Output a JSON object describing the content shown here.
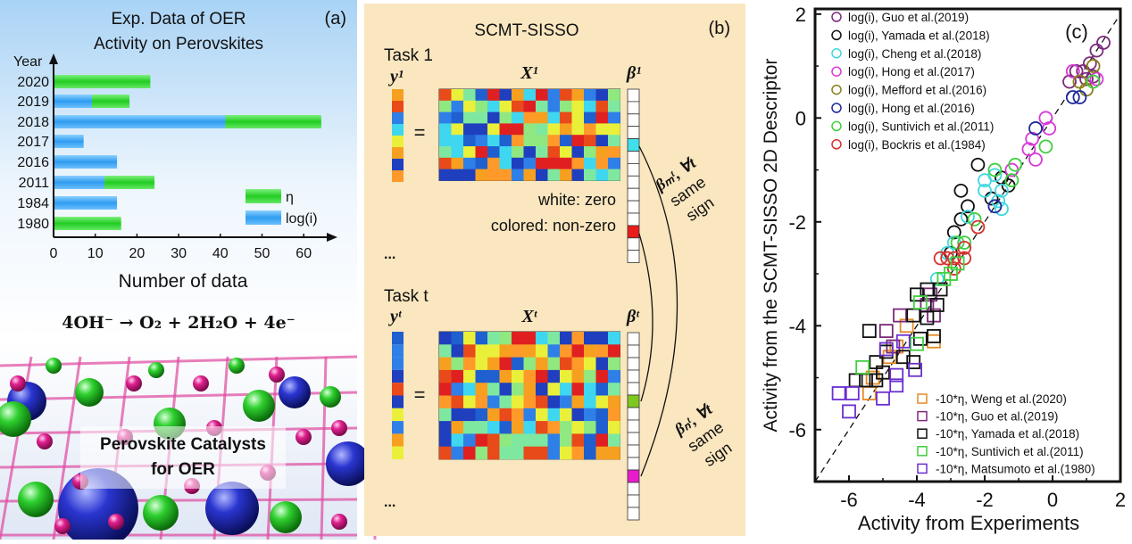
{
  "panel_a": {
    "label": "(a)",
    "equation": "4OH⁻ →  O₂ + 2H₂O + 4e⁻",
    "image_caption": [
      "Perovskite Catalysts",
      "for OER"
    ]
  },
  "panel_b": {
    "label": "(b)",
    "title": "SCMT-SISSO",
    "task1": {
      "label": "Task 1",
      "y": "y¹",
      "X": "X¹",
      "beta": "β¹"
    },
    "taskt": {
      "label": "Task t",
      "y": "yᵗ",
      "X": "Xᵗ",
      "beta": "βᵗ"
    },
    "equals": "=",
    "ellipsis": "...",
    "note_white": "white: zero",
    "note_colored": "colored: non-zero",
    "constraint_m": [
      "βₘᵗ, ∀t",
      "same",
      "sign"
    ],
    "constraint_n": [
      "βₙᵗ, ∀t",
      "same",
      "sign"
    ]
  },
  "chart_data": [
    {
      "type": "bar",
      "orientation": "horizontal",
      "stacked": true,
      "title_lines": [
        "Exp. Data of OER",
        "Activity on Perovskites"
      ],
      "ylabel": "Year",
      "xlabel": "Number of data",
      "categories": [
        "2020",
        "2019",
        "2018",
        "2017",
        "2016",
        "2011",
        "1984",
        "1980"
      ],
      "series": [
        {
          "name": "log(i)",
          "color": "#3aa2f2",
          "values": [
            0,
            9,
            41,
            7,
            15,
            12,
            15,
            0
          ]
        },
        {
          "name": "η",
          "color": "#2fd52f",
          "values": [
            23,
            9,
            23,
            0,
            0,
            12,
            0,
            16
          ]
        }
      ],
      "xlim": [
        0,
        65
      ],
      "xticks": [
        0,
        10,
        20,
        30,
        40,
        50,
        60
      ],
      "legend_position": "bottom-right",
      "grid": false
    },
    {
      "type": "scatter",
      "label": "(c)",
      "xlabel": "Activity from Experiments",
      "ylabel": "Activity from the SCMT-SISSO 2D Descriptor",
      "xlim": [
        -7,
        2
      ],
      "ylim": [
        -7,
        2.1
      ],
      "xticks": [
        -6,
        -4,
        -2,
        0,
        2
      ],
      "yticks": [
        -6,
        -4,
        -2,
        0,
        2
      ],
      "reference_line": "y = x (dashed)",
      "grid": false,
      "legend_position": [
        "top-left",
        "bottom-right"
      ],
      "series": [
        {
          "name": "log(i), Guo et al.(2019)",
          "marker": "circle",
          "color": "#7b2a7b",
          "points": [
            [
              0.5,
              0.7
            ],
            [
              0.7,
              0.9
            ],
            [
              0.9,
              0.9
            ],
            [
              1.1,
              1.05
            ],
            [
              1.3,
              1.3
            ],
            [
              1.5,
              1.45
            ],
            [
              1.2,
              0.8
            ],
            [
              1.0,
              0.75
            ]
          ]
        },
        {
          "name": "log(i), Yamada et al.(2018)",
          "marker": "circle",
          "color": "#111111",
          "points": [
            [
              -2.2,
              -0.9
            ],
            [
              -1.5,
              -1.15
            ],
            [
              -2.7,
              -1.4
            ],
            [
              -1.8,
              -1.55
            ],
            [
              -2.5,
              -1.7
            ],
            [
              -2.7,
              -1.95
            ],
            [
              -2.9,
              -2.2
            ],
            [
              -1.3,
              -1.3
            ],
            [
              -3.0,
              -2.6
            ]
          ]
        },
        {
          "name": "log(i), Cheng et al.(2018)",
          "marker": "circle",
          "color": "#3fd8e0",
          "points": [
            [
              -1.7,
              -1.1
            ],
            [
              -2.0,
              -1.4
            ],
            [
              -1.5,
              -1.4
            ],
            [
              -1.6,
              -1.6
            ],
            [
              -1.5,
              -1.75
            ],
            [
              -2.5,
              -1.9
            ],
            [
              -3.1,
              -2.6
            ],
            [
              -2.9,
              -2.4
            ],
            [
              -2.0,
              -1.2
            ],
            [
              -3.4,
              -3.1
            ]
          ]
        },
        {
          "name": "log(i), Hong et al.(2017)",
          "marker": "circle",
          "color": "#d83ad8",
          "points": [
            [
              -0.2,
              0.0
            ],
            [
              -0.1,
              -0.2
            ],
            [
              -0.6,
              -0.4
            ],
            [
              -0.7,
              -0.6
            ],
            [
              -0.5,
              -0.8
            ],
            [
              -1.2,
              -1.0
            ],
            [
              0.6,
              0.9
            ],
            [
              1.3,
              0.75
            ]
          ]
        },
        {
          "name": "log(i), Mefford et al.(2016)",
          "marker": "circle",
          "color": "#8b7d1a",
          "points": [
            [
              0.8,
              0.7
            ],
            [
              1.2,
              1.0
            ],
            [
              1.0,
              0.55
            ]
          ]
        },
        {
          "name": "log(i), Hong et al.(2016)",
          "marker": "circle",
          "color": "#1e2a9a",
          "points": [
            [
              -0.5,
              -0.2
            ],
            [
              0.6,
              0.4
            ],
            [
              0.8,
              0.4
            ],
            [
              -1.7,
              -1.7
            ]
          ]
        },
        {
          "name": "log(i), Suntivich et al.(2011)",
          "marker": "circle",
          "color": "#3fcf3f",
          "points": [
            [
              -1.7,
              -1.0
            ],
            [
              -0.2,
              -0.55
            ],
            [
              -1.2,
              -1.2
            ],
            [
              -2.3,
              -1.95
            ],
            [
              -2.8,
              -2.4
            ],
            [
              -2.6,
              -2.4
            ],
            [
              1.2,
              0.7
            ],
            [
              -1.1,
              -0.9
            ]
          ]
        },
        {
          "name": "log(i), Bockris et al.(1984)",
          "marker": "circle",
          "color": "#d8302a",
          "points": [
            [
              -2.2,
              -2.1
            ],
            [
              -2.6,
              -2.5
            ],
            [
              -3.3,
              -2.7
            ],
            [
              -3.1,
              -2.7
            ],
            [
              -2.9,
              -2.7
            ],
            [
              -2.6,
              -2.7
            ],
            [
              -2.9,
              -2.9
            ]
          ]
        },
        {
          "name": "-10*η, Weng et al.(2020)",
          "marker": "square",
          "color": "#e38b25",
          "points": [
            [
              -4.3,
              -4.0
            ],
            [
              -3.5,
              -4.3
            ],
            [
              -4.6,
              -4.4
            ],
            [
              -5.3,
              -5.0
            ],
            [
              -5.0,
              -4.9
            ],
            [
              -4.8,
              -4.6
            ],
            [
              -5.4,
              -5.3
            ]
          ]
        },
        {
          "name": "-10*η, Guo et al.(2019)",
          "marker": "square",
          "color": "#7b2a7b",
          "points": [
            [
              -4.5,
              -3.8
            ],
            [
              -3.5,
              -3.8
            ],
            [
              -3.7,
              -3.6
            ],
            [
              -4.9,
              -4.1
            ],
            [
              -4.7,
              -4.4
            ],
            [
              -3.6,
              -3.4
            ]
          ]
        },
        {
          "name": "-10*η, Yamada et al.(2018)",
          "marker": "square",
          "color": "#111111",
          "points": [
            [
              -5.4,
              -4.1
            ],
            [
              -4.0,
              -3.4
            ],
            [
              -3.7,
              -3.3
            ],
            [
              -3.3,
              -3.3
            ],
            [
              -4.1,
              -3.8
            ],
            [
              -3.7,
              -3.85
            ],
            [
              -3.4,
              -3.6
            ],
            [
              -3.9,
              -4.25
            ],
            [
              -3.5,
              -4.2
            ],
            [
              -4.9,
              -4.5
            ],
            [
              -4.4,
              -4.6
            ],
            [
              -5.2,
              -4.7
            ],
            [
              -4.1,
              -4.7
            ],
            [
              -5.0,
              -4.9
            ],
            [
              -5.8,
              -5.05
            ],
            [
              -5.5,
              -5.05
            ],
            [
              -5.2,
              -5.05
            ]
          ]
        },
        {
          "name": "-10*η, Suntivich et al.(2011)",
          "marker": "square",
          "color": "#3fcf3f",
          "points": [
            [
              -3.0,
              -3.0
            ],
            [
              -3.9,
              -3.55
            ],
            [
              -4.0,
              -4.35
            ],
            [
              -5.6,
              -4.8
            ],
            [
              -3.2,
              -3.1
            ],
            [
              -2.8,
              -2.8
            ]
          ]
        },
        {
          "name": "-10*η, Matsumoto et al.(1980)",
          "marker": "square",
          "color": "#6b2fd0",
          "points": [
            [
              -6.3,
              -5.3
            ],
            [
              -5.9,
              -5.3
            ],
            [
              -6.0,
              -5.65
            ],
            [
              -5.0,
              -5.4
            ],
            [
              -4.6,
              -4.95
            ],
            [
              -4.6,
              -5.15
            ],
            [
              -4.05,
              -4.85
            ],
            [
              -4.9,
              -4.45
            ],
            [
              -4.4,
              -4.3
            ]
          ]
        }
      ]
    }
  ]
}
